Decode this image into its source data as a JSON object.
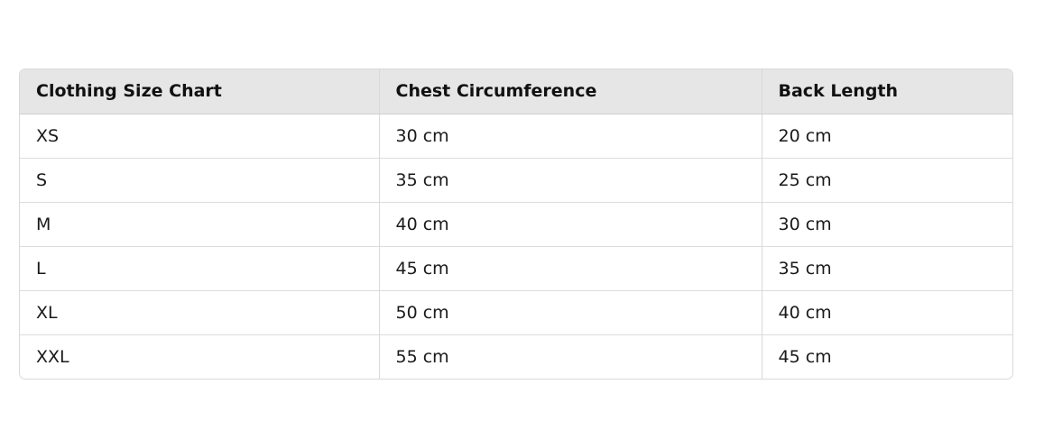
{
  "table": {
    "headers": [
      "Clothing Size Chart",
      "Chest Circumference",
      "Back Length"
    ],
    "rows": [
      [
        "XS",
        "30 cm",
        "20 cm"
      ],
      [
        "S",
        "35 cm",
        "25 cm"
      ],
      [
        "M",
        "40 cm",
        "30 cm"
      ],
      [
        "L",
        "45 cm",
        "35 cm"
      ],
      [
        "XL",
        "50 cm",
        "40 cm"
      ],
      [
        "XXL",
        "55 cm",
        "45 cm"
      ]
    ]
  }
}
